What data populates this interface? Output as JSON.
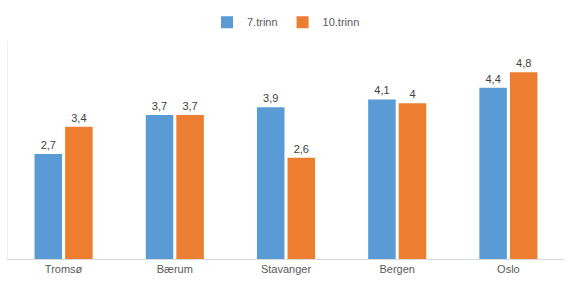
{
  "chart_data": {
    "type": "bar",
    "categories": [
      "Tromsø",
      "Bærum",
      "Stavanger",
      "Bergen",
      "Oslo"
    ],
    "series": [
      {
        "name": "7.trinn",
        "color": "#5b9bd5",
        "values": [
          2.7,
          3.7,
          3.9,
          4.1,
          4.4
        ],
        "value_labels": [
          "2,7",
          "3,7",
          "3,9",
          "4,1",
          "4,4"
        ]
      },
      {
        "name": "10.trinn",
        "color": "#ed7d31",
        "values": [
          3.4,
          3.7,
          2.6,
          4,
          4.8
        ],
        "value_labels": [
          "3,4",
          "3,7",
          "2,6",
          "4",
          "4,8"
        ]
      }
    ],
    "ylim": [
      0,
      5.6
    ],
    "grid": false,
    "legend": "top",
    "data_labels": true,
    "tick_labels": "x"
  }
}
